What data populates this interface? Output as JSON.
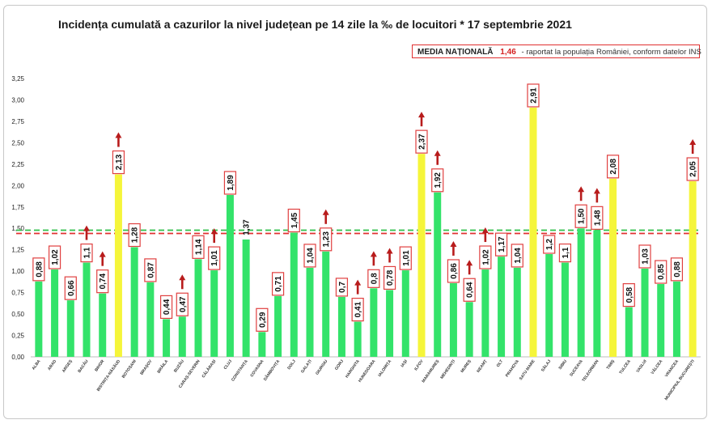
{
  "title": "Incidența cumulată a cazurilor la nivel județean pe 14 zile la ‰ de locuitori * 17 septembrie 2021",
  "legend": {
    "label": "MEDIA NAȚIONALĂ",
    "value": "1,46",
    "note": "- raportat la populația României, conform datelor INS"
  },
  "colors": {
    "normal": "#33e36a",
    "above_average": "#f5f53a",
    "label_border": "#e04040",
    "arrow": "#b81c1c",
    "avg_line_green": "#2fbf4a",
    "avg_line_red": "#e03030"
  },
  "chart_data": {
    "type": "bar",
    "title": "Incidența cumulată a cazurilor la nivel județean pe 14 zile la ‰ de locuitori * 17 septembrie 2021",
    "ylim": [
      0,
      3.25
    ],
    "yticks": [
      "0,00",
      "0,25",
      "0,50",
      "0,75",
      "1,00",
      "1,25",
      "1,50",
      "1,75",
      "2,00",
      "2,25",
      "2,50",
      "2,75",
      "3,00",
      "3,25"
    ],
    "national_average": 1.46,
    "grid": false,
    "categories": [
      "ALBA",
      "ARAD",
      "ARGEȘ",
      "BACĂU",
      "BIHOR",
      "BISTRIȚA-NĂSĂUD",
      "BOTOȘANI",
      "BRAȘOV",
      "BRĂILA",
      "BUZĂU",
      "CARAȘ-SEVERIN",
      "CĂLĂRAȘI",
      "CLUJ",
      "CONSTANȚA",
      "COVASNA",
      "DÂMBOVIȚA",
      "DOLJ",
      "GALAȚI",
      "GIURGIU",
      "GORJ",
      "HARGHITA",
      "HUNEDOARA",
      "IALOMIȚA",
      "IAȘI",
      "ILFOV",
      "MARAMUREȘ",
      "MEHEDINȚI",
      "MUREȘ",
      "NEAMȚ",
      "OLT",
      "PRAHOVA",
      "SATU MARE",
      "SĂLAJ",
      "SIBIU",
      "SUCEAVA",
      "TELEORMAN",
      "TIMIȘ",
      "TULCEA",
      "VASLUI",
      "VÂLCEA",
      "VRANCEA",
      "MUNICIPIUL BUCUREȘTI"
    ],
    "values": [
      0.88,
      1.02,
      0.66,
      1.1,
      0.74,
      2.13,
      1.28,
      0.87,
      0.44,
      0.47,
      1.14,
      1.01,
      1.89,
      1.37,
      0.29,
      0.71,
      1.45,
      1.04,
      1.23,
      0.7,
      0.41,
      0.8,
      0.78,
      1.01,
      2.37,
      1.92,
      0.86,
      0.64,
      1.02,
      1.17,
      1.04,
      2.91,
      1.2,
      1.1,
      1.5,
      1.48,
      2.08,
      0.58,
      1.03,
      0.85,
      0.88,
      2.05
    ],
    "labels": [
      "0,88",
      "1,02",
      "0,66",
      "1,1",
      "0,74",
      "2,13",
      "1,28",
      "0,87",
      "0,44",
      "0,47",
      "1,14",
      "1,01",
      "1,89",
      "1,37",
      "0,29",
      "0,71",
      "1,45",
      "1,04",
      "1,23",
      "0,7",
      "0,41",
      "0,8",
      "0,78",
      "1,01",
      "2,37",
      "1,92",
      "0,86",
      "0,64",
      "1,02",
      "1,17",
      "1,04",
      "2,91",
      "1,2",
      "1,1",
      "1,50",
      "1,48",
      "2,08",
      "0,58",
      "1,03",
      "0,85",
      "0,88",
      "2,05"
    ],
    "above_average": [
      false,
      false,
      false,
      false,
      false,
      true,
      false,
      false,
      false,
      false,
      false,
      false,
      false,
      false,
      false,
      false,
      false,
      false,
      false,
      false,
      false,
      false,
      false,
      false,
      true,
      false,
      false,
      false,
      false,
      false,
      false,
      true,
      false,
      false,
      false,
      false,
      true,
      false,
      false,
      false,
      false,
      true
    ],
    "trend_up": [
      false,
      false,
      false,
      true,
      true,
      true,
      false,
      false,
      false,
      true,
      false,
      true,
      false,
      false,
      false,
      false,
      false,
      false,
      true,
      false,
      true,
      true,
      true,
      false,
      true,
      true,
      true,
      true,
      true,
      false,
      false,
      false,
      false,
      false,
      true,
      true,
      false,
      false,
      false,
      false,
      false,
      true
    ],
    "boxed_label": [
      true,
      true,
      true,
      true,
      true,
      true,
      true,
      true,
      true,
      true,
      true,
      true,
      true,
      false,
      true,
      true,
      true,
      true,
      true,
      true,
      true,
      true,
      true,
      true,
      true,
      true,
      true,
      true,
      true,
      true,
      true,
      true,
      true,
      true,
      true,
      true,
      true,
      true,
      true,
      true,
      true,
      true
    ]
  }
}
